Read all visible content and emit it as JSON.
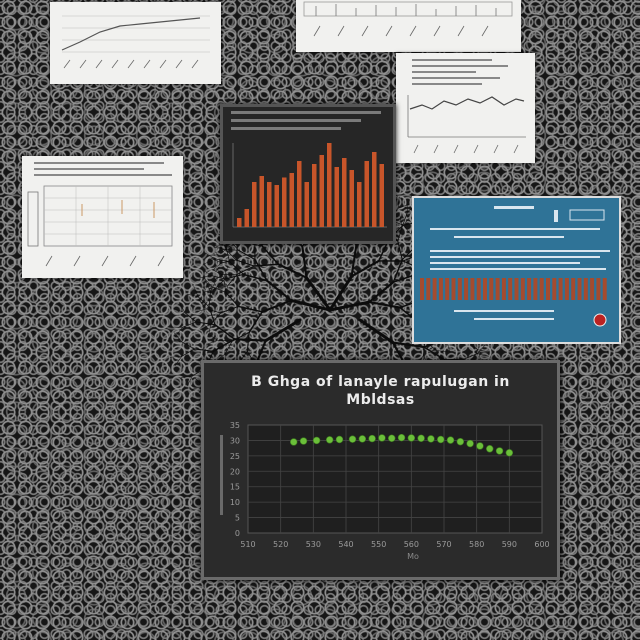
{
  "scene": {
    "description_free": true,
    "background": {
      "style": "textured cellular pattern",
      "colors": [
        "#161616",
        "#8c8c8c"
      ]
    },
    "panels": [
      {
        "kind": "paper",
        "content": "line-chart"
      },
      {
        "kind": "paper",
        "content": "bar-chart"
      },
      {
        "kind": "paper",
        "content": "line-chart"
      },
      {
        "kind": "paper",
        "content": "grid-chart"
      },
      {
        "kind": "dark-screen",
        "content": "bar-chart"
      },
      {
        "kind": "blue-screen",
        "content": "bar-chart"
      }
    ]
  },
  "main_chart": {
    "title_line1": "B Ghga of lanayle rapulugan in",
    "title_line2": "Mbldsas",
    "y_ticks": [
      "35",
      "30",
      "25",
      "20",
      "15",
      "10",
      "5",
      "0"
    ],
    "x_ticks": [
      "510",
      "520",
      "530",
      "540",
      "550",
      "560",
      "570",
      "580",
      "590",
      "600"
    ],
    "x_label": "Mo",
    "point_color": "#6bbf3a",
    "points": [
      [
        524,
        29.5
      ],
      [
        527,
        29.8
      ],
      [
        531,
        30.0
      ],
      [
        535,
        30.2
      ],
      [
        538,
        30.3
      ],
      [
        542,
        30.4
      ],
      [
        545,
        30.5
      ],
      [
        548,
        30.6
      ],
      [
        551,
        30.8
      ],
      [
        554,
        30.7
      ],
      [
        557,
        30.9
      ],
      [
        560,
        30.8
      ],
      [
        563,
        30.7
      ],
      [
        566,
        30.5
      ],
      [
        569,
        30.3
      ],
      [
        572,
        30.1
      ],
      [
        575,
        29.6
      ],
      [
        578,
        29.0
      ],
      [
        581,
        28.2
      ],
      [
        584,
        27.3
      ],
      [
        587,
        26.6
      ],
      [
        590,
        26.0
      ]
    ]
  },
  "dark_screen_bars": [
    6,
    12,
    30,
    34,
    30,
    28,
    33,
    36,
    44,
    30,
    42,
    48,
    56,
    40,
    46,
    38,
    30,
    44,
    50,
    42
  ],
  "blue_screen_bars": [
    22,
    22,
    22,
    22,
    22,
    22,
    22,
    22,
    22,
    22,
    22,
    22,
    22,
    22,
    22,
    22,
    22,
    22,
    22,
    22,
    22,
    22,
    22,
    22,
    22,
    22,
    22,
    22,
    22,
    22
  ],
  "bar_color": "#c8552a"
}
